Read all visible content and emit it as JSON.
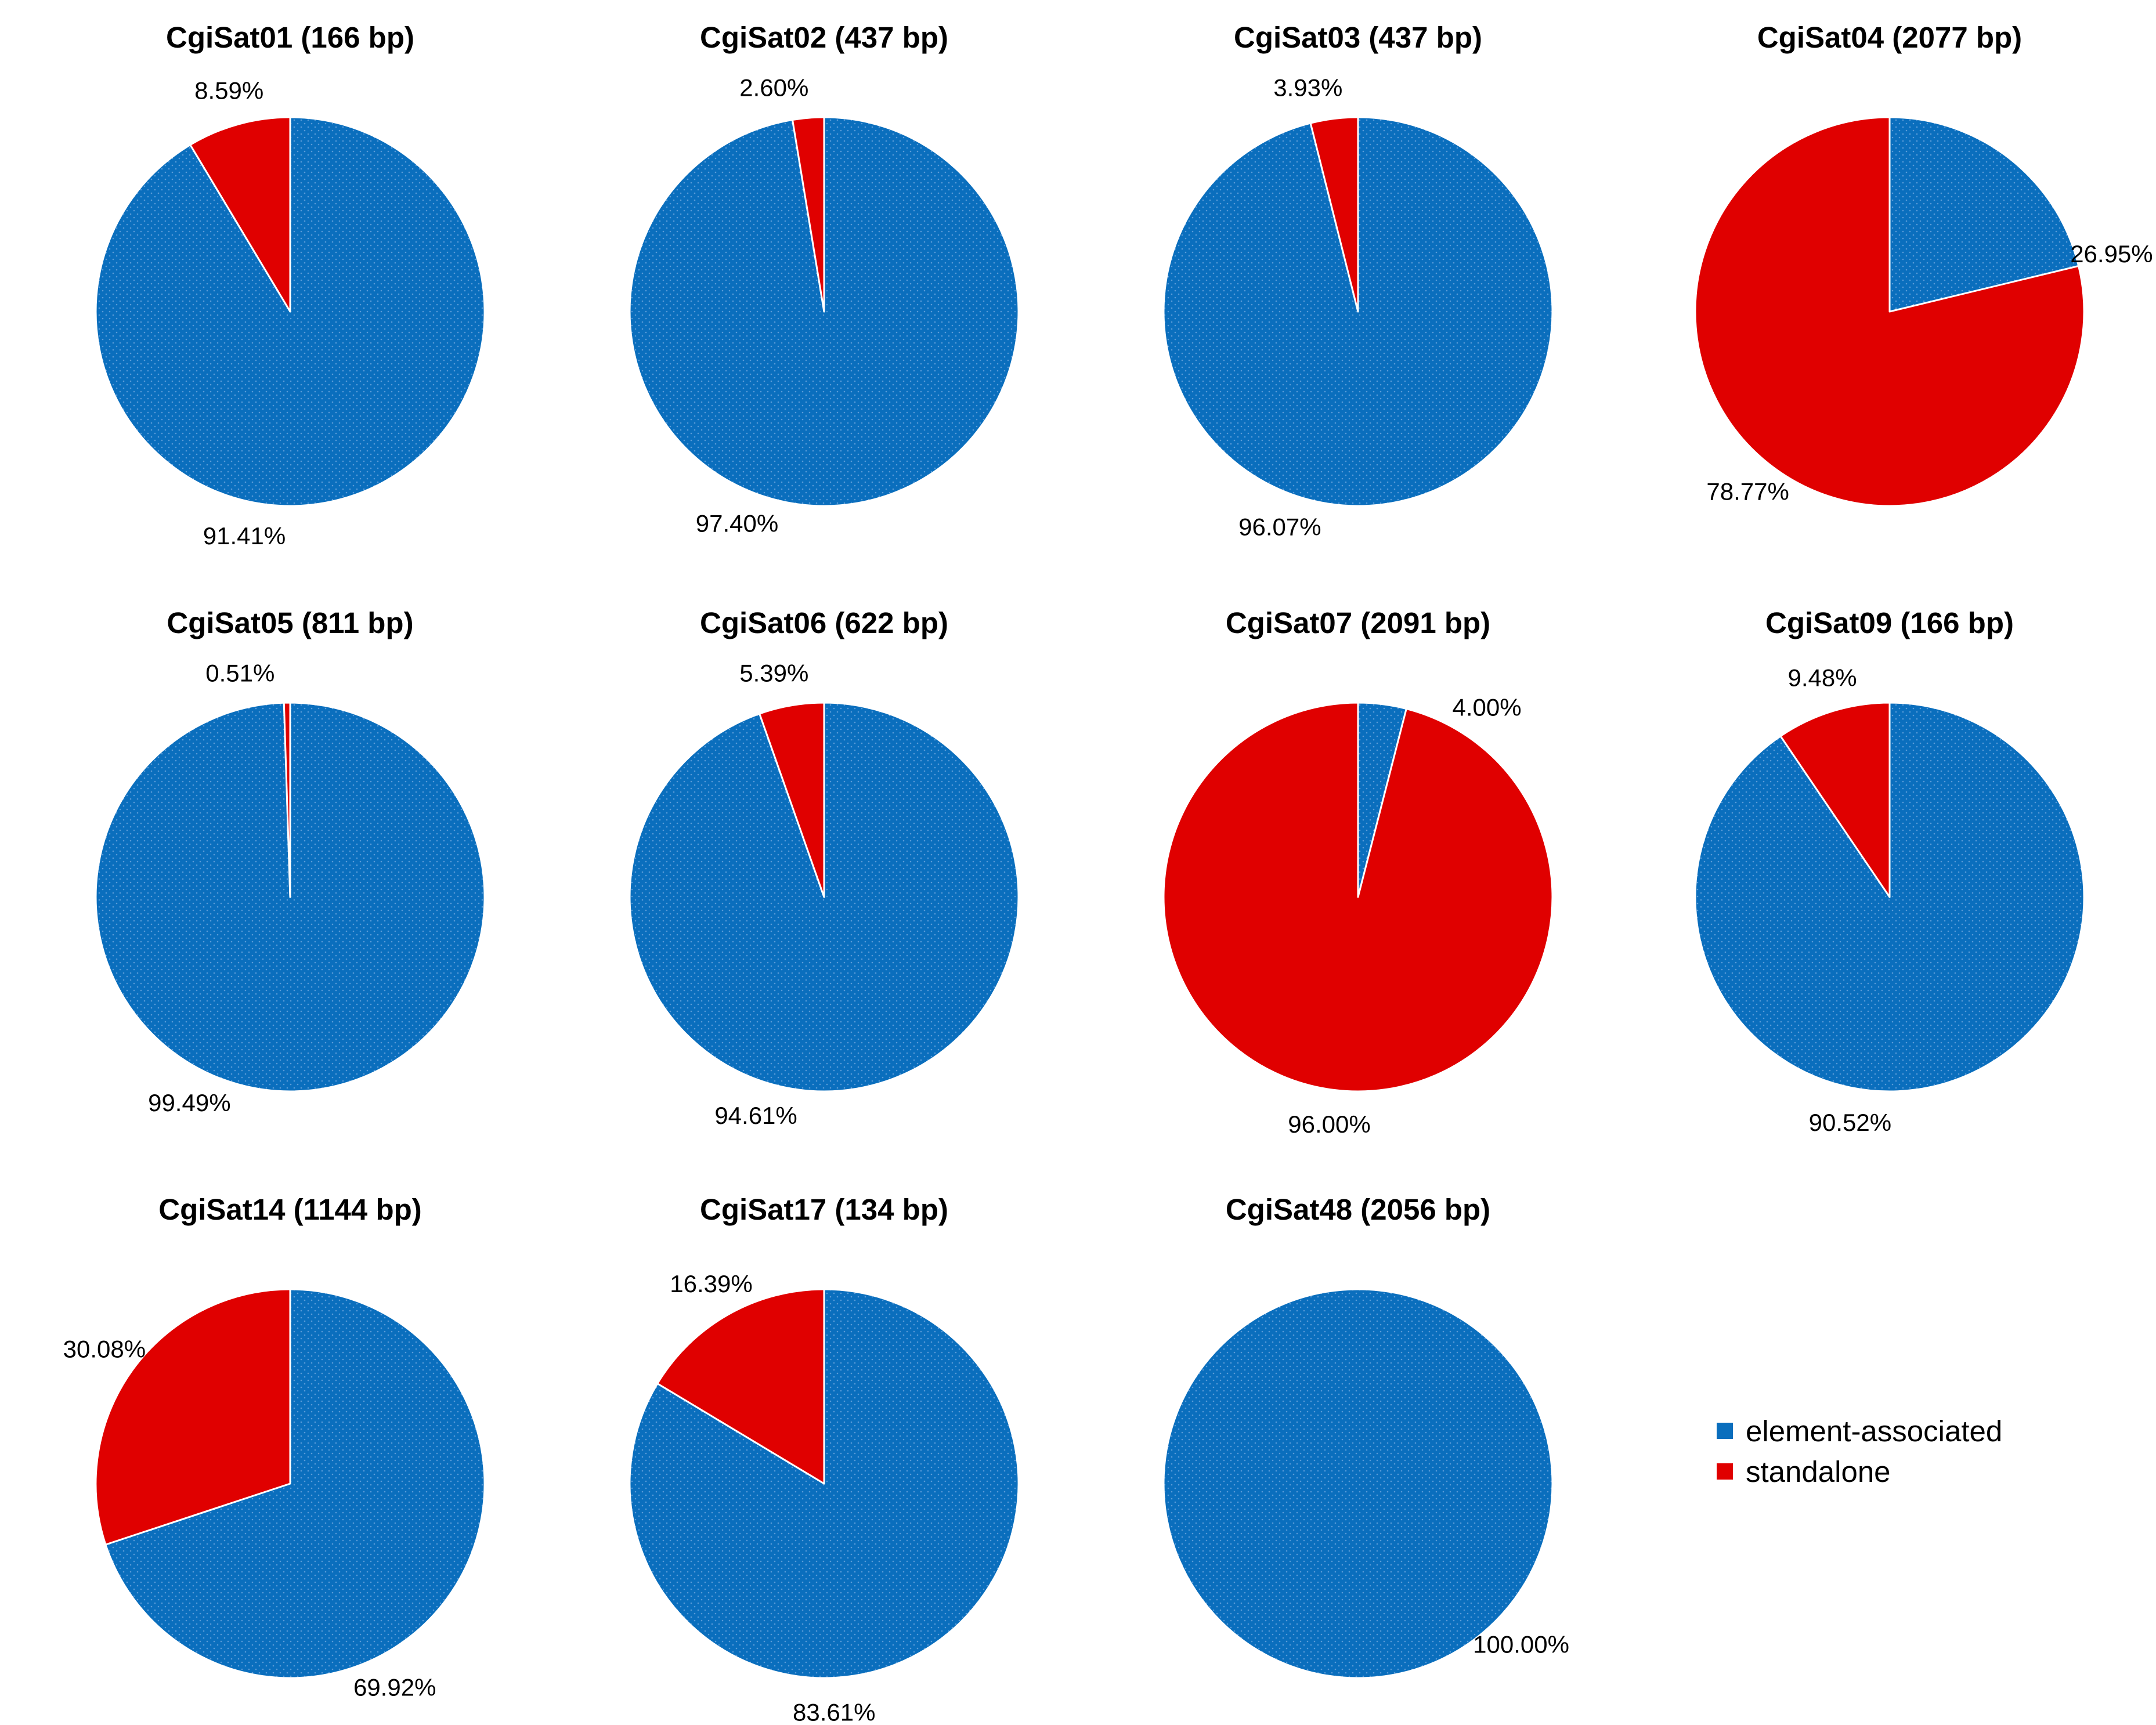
{
  "colors": {
    "element_associated": "#0A6EBD",
    "standalone": "#E00000",
    "slice_border": "#FFFFFF",
    "dots": "#5A9BD8"
  },
  "legend": {
    "items": [
      {
        "label": "element-associated",
        "color": "#0A6EBD"
      },
      {
        "label": "standalone",
        "color": "#E00000"
      }
    ]
  },
  "chart_data": [
    {
      "type": "pie",
      "title": "CgiSat01 (166 bp)",
      "categories": [
        "element-associated",
        "standalone"
      ],
      "values": [
        91.41,
        8.59
      ],
      "labels": [
        "91.41%",
        "8.59%"
      ]
    },
    {
      "type": "pie",
      "title": "CgiSat02 (437 bp)",
      "categories": [
        "element-associated",
        "standalone"
      ],
      "values": [
        97.4,
        2.6
      ],
      "labels": [
        "97.40%",
        "2.60%"
      ]
    },
    {
      "type": "pie",
      "title": "CgiSat03 (437 bp)",
      "categories": [
        "element-associated",
        "standalone"
      ],
      "values": [
        96.07,
        3.93
      ],
      "labels": [
        "96.07%",
        "3.93%"
      ]
    },
    {
      "type": "pie",
      "title": "CgiSat04 (2077 bp)",
      "categories": [
        "element-associated",
        "standalone"
      ],
      "values": [
        26.95,
        78.77
      ],
      "labels": [
        "26.95%",
        "78.77%"
      ]
    },
    {
      "type": "pie",
      "title": "CgiSat05 (811 bp)",
      "categories": [
        "element-associated",
        "standalone"
      ],
      "values": [
        99.49,
        0.51
      ],
      "labels": [
        "99.49%",
        "0.51%"
      ]
    },
    {
      "type": "pie",
      "title": "CgiSat06 (622 bp)",
      "categories": [
        "element-associated",
        "standalone"
      ],
      "values": [
        94.61,
        5.39
      ],
      "labels": [
        "94.61%",
        "5.39%"
      ]
    },
    {
      "type": "pie",
      "title": "CgiSat07 (2091 bp)",
      "categories": [
        "element-associated",
        "standalone"
      ],
      "values": [
        4.0,
        96.0
      ],
      "labels": [
        "4.00%",
        "96.00%"
      ]
    },
    {
      "type": "pie",
      "title": "CgiSat09 (166 bp)",
      "categories": [
        "element-associated",
        "standalone"
      ],
      "values": [
        90.52,
        9.48
      ],
      "labels": [
        "90.52%",
        "9.48%"
      ]
    },
    {
      "type": "pie",
      "title": "CgiSat14 (1144 bp)",
      "categories": [
        "element-associated",
        "standalone"
      ],
      "values": [
        69.92,
        30.08
      ],
      "labels": [
        "69.92%",
        "30.08%"
      ]
    },
    {
      "type": "pie",
      "title": "CgiSat17 (134 bp)",
      "categories": [
        "element-associated",
        "standalone"
      ],
      "values": [
        83.61,
        16.39
      ],
      "labels": [
        "83.61%",
        "16.39%"
      ]
    },
    {
      "type": "pie",
      "title": "CgiSat48 (2056 bp)",
      "categories": [
        "element-associated",
        "standalone"
      ],
      "values": [
        100.0,
        0
      ],
      "labels": [
        "100.00%",
        ""
      ]
    }
  ]
}
